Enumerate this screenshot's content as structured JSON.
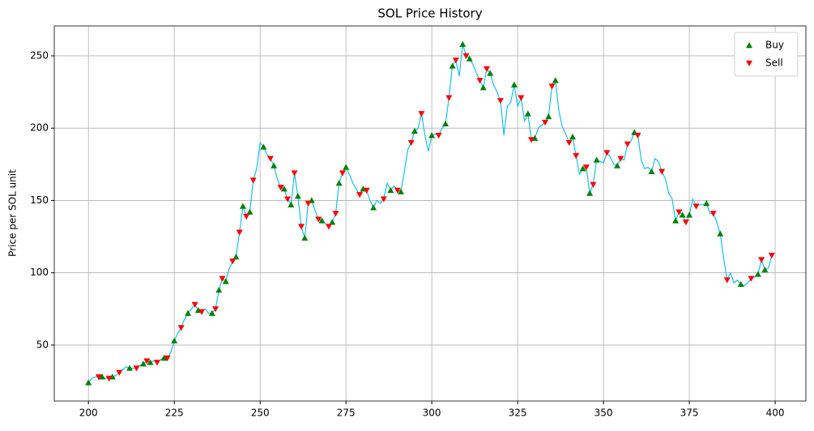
{
  "chart_data": {
    "type": "line",
    "title": "SOL Price History",
    "ylabel": "Price per SOL unit",
    "xlim": [
      190.05,
      408.95
    ],
    "ylim": [
      11.3,
      270.7
    ],
    "xticks": [
      200,
      225,
      250,
      275,
      300,
      325,
      350,
      375,
      400
    ],
    "yticks": [
      50,
      100,
      150,
      200,
      250
    ],
    "grid": true,
    "legend": "upper right",
    "series": [
      {
        "color": "#19bfe8",
        "x": [
          200,
          201,
          202,
          203,
          204,
          205,
          206,
          207,
          208,
          209,
          210,
          211,
          212,
          213,
          214,
          215,
          216,
          217,
          218,
          219,
          220,
          221,
          222,
          223,
          224,
          225,
          226,
          227,
          228,
          229,
          230,
          231,
          232,
          233,
          234,
          235,
          236,
          237,
          238,
          239,
          240,
          241,
          242,
          243,
          244,
          245,
          246,
          247,
          248,
          249,
          250,
          251,
          252,
          253,
          254,
          255,
          256,
          257,
          258,
          259,
          260,
          261,
          262,
          263,
          264,
          265,
          266,
          267,
          268,
          269,
          270,
          271,
          272,
          273,
          274,
          275,
          276,
          277,
          278,
          279,
          280,
          281,
          282,
          283,
          284,
          285,
          286,
          287,
          288,
          289,
          290,
          291,
          292,
          293,
          294,
          295,
          296,
          297,
          298,
          299,
          300,
          301,
          302,
          303,
          304,
          305,
          306,
          307,
          308,
          309,
          310,
          311,
          312,
          313,
          314,
          315,
          316,
          317,
          318,
          319,
          320,
          321,
          322,
          323,
          324,
          325,
          326,
          327,
          328,
          329,
          330,
          331,
          332,
          333,
          334,
          335,
          336,
          337,
          338,
          339,
          340,
          341,
          342,
          343,
          344,
          345,
          346,
          347,
          348,
          349,
          350,
          351,
          352,
          353,
          354,
          355,
          356,
          357,
          358,
          359,
          360,
          361,
          362,
          363,
          364,
          365,
          366,
          367,
          368,
          369,
          370,
          371,
          372,
          373,
          374,
          375,
          376,
          377,
          378,
          379,
          380,
          381,
          382,
          383,
          384,
          385,
          386,
          387,
          388,
          389,
          390,
          391,
          392,
          393,
          394,
          395,
          396,
          397,
          398,
          399
        ],
        "values": [
          24,
          27,
          28,
          28,
          28,
          27,
          27,
          28,
          29,
          31,
          33,
          35,
          34,
          34,
          34,
          36,
          37,
          39,
          38,
          39,
          38,
          40,
          41,
          41,
          45,
          53,
          58,
          62,
          68,
          72,
          75,
          78,
          74,
          73,
          75,
          72,
          72,
          75,
          88,
          96,
          94,
          103,
          108,
          111,
          128,
          146,
          139,
          142,
          164,
          172,
          190,
          187,
          182,
          179,
          174,
          165,
          159,
          158,
          151,
          147,
          169,
          153,
          132,
          124,
          148,
          150,
          143,
          137,
          136,
          134,
          132,
          135,
          141,
          162,
          169,
          173,
          168,
          162,
          158,
          154,
          158,
          157,
          150,
          145,
          150,
          148,
          151,
          162,
          157,
          160,
          157,
          156,
          170,
          185,
          190,
          198,
          200,
          210,
          195,
          184,
          195,
          196,
          195,
          200,
          203,
          221,
          243,
          247,
          236,
          258,
          250,
          248,
          244,
          238,
          233,
          228,
          241,
          238,
          230,
          225,
          219,
          195,
          215,
          218,
          230,
          215,
          221,
          205,
          210,
          192,
          193,
          200,
          202,
          204,
          208,
          229,
          233,
          212,
          201,
          196,
          190,
          194,
          181,
          168,
          172,
          173,
          155,
          161,
          178,
          177,
          176,
          183,
          180,
          175,
          174,
          179,
          178,
          189,
          191,
          197,
          195,
          178,
          172,
          173,
          170,
          179,
          177,
          170,
          165,
          155,
          151,
          136,
          142,
          140,
          135,
          140,
          151,
          146,
          147,
          147,
          148,
          141,
          141,
          135,
          127,
          110,
          95,
          100,
          93,
          95,
          92,
          91,
          93,
          96,
          97,
          99,
          109,
          102,
          103,
          112
        ]
      },
      {
        "name": "Buy",
        "marker": "^",
        "color": "green",
        "x": [
          200,
          204,
          207,
          212,
          216,
          218,
          222,
          225,
          229,
          232,
          236,
          238,
          240,
          243,
          245,
          247,
          251,
          254,
          257,
          259,
          261,
          263,
          265,
          268,
          271,
          273,
          275,
          280,
          283,
          288,
          291,
          295,
          300,
          304,
          306,
          309,
          311,
          315,
          317,
          324,
          328,
          330,
          334,
          336,
          341,
          344,
          346,
          348,
          354,
          359,
          364,
          371,
          373,
          375,
          380,
          384,
          390,
          395,
          397
        ],
        "values": [
          24,
          28,
          28,
          34,
          37,
          38,
          41,
          53,
          72,
          74,
          72,
          88,
          94,
          111,
          146,
          142,
          187,
          174,
          158,
          147,
          153,
          124,
          150,
          136,
          135,
          162,
          173,
          158,
          145,
          157,
          156,
          198,
          195,
          203,
          243,
          258,
          248,
          228,
          238,
          230,
          210,
          193,
          208,
          233,
          194,
          172,
          155,
          178,
          174,
          197,
          170,
          136,
          140,
          140,
          148,
          127,
          92,
          99,
          102
        ]
      },
      {
        "name": "Sell",
        "marker": "v",
        "color": "red",
        "x": [
          203,
          206,
          209,
          214,
          217,
          220,
          223,
          227,
          231,
          233,
          237,
          239,
          242,
          244,
          246,
          248,
          253,
          256,
          258,
          260,
          262,
          264,
          267,
          270,
          272,
          274,
          279,
          281,
          286,
          290,
          294,
          297,
          302,
          305,
          307,
          310,
          314,
          316,
          320,
          326,
          329,
          333,
          335,
          340,
          342,
          345,
          347,
          351,
          355,
          357,
          360,
          367,
          372,
          374,
          377,
          382,
          386,
          393,
          396,
          399
        ],
        "values": [
          28,
          27,
          31,
          34,
          39,
          38,
          41,
          62,
          78,
          73,
          75,
          96,
          108,
          128,
          139,
          164,
          179,
          159,
          151,
          169,
          132,
          148,
          137,
          132,
          141,
          169,
          154,
          157,
          151,
          157,
          190,
          210,
          195,
          221,
          247,
          250,
          233,
          241,
          219,
          221,
          192,
          204,
          229,
          190,
          181,
          173,
          161,
          183,
          179,
          189,
          195,
          170,
          142,
          135,
          146,
          141,
          95,
          96,
          109,
          112
        ]
      }
    ]
  }
}
